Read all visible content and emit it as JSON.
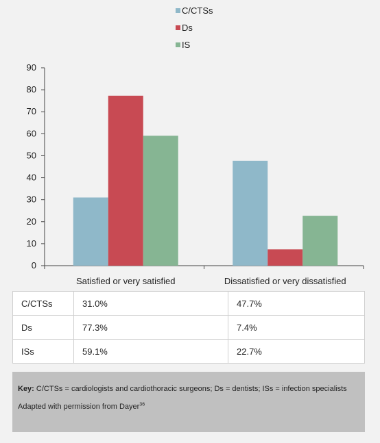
{
  "chart_data": {
    "type": "bar",
    "categories": [
      "Satisfied or very satisfied",
      "Dissatisfied or very dissatisfied"
    ],
    "series": [
      {
        "name": "C/CTSs",
        "values": [
          31.0,
          47.7
        ],
        "color": "#8fb8c9"
      },
      {
        "name": "Ds",
        "values": [
          77.3,
          7.4
        ],
        "color": "#c84a53"
      },
      {
        "name": "IS",
        "values": [
          59.1,
          22.7
        ],
        "color": "#86b593"
      }
    ],
    "ylim": [
      0,
      90
    ],
    "yticks": [
      0,
      10,
      20,
      30,
      40,
      50,
      60,
      70,
      80,
      90
    ],
    "legend_position": "top-center",
    "grid": false,
    "title": "",
    "xlabel": "",
    "ylabel": ""
  },
  "table": {
    "rows": [
      {
        "label": "C/CTSs",
        "values": [
          "31.0%",
          "47.7%"
        ]
      },
      {
        "label": "Ds",
        "values": [
          "77.3%",
          "7.4%"
        ]
      },
      {
        "label": "ISs",
        "values": [
          "59.1%",
          "22.7%"
        ]
      }
    ]
  },
  "key": {
    "label": "Key:",
    "text": "C/CTSs = cardiologists and cardiothoracic surgeons; Ds = dentists; ISs = infection specialists",
    "adapted_text": "Adapted with permission from Dayer",
    "adapted_ref": "36"
  }
}
